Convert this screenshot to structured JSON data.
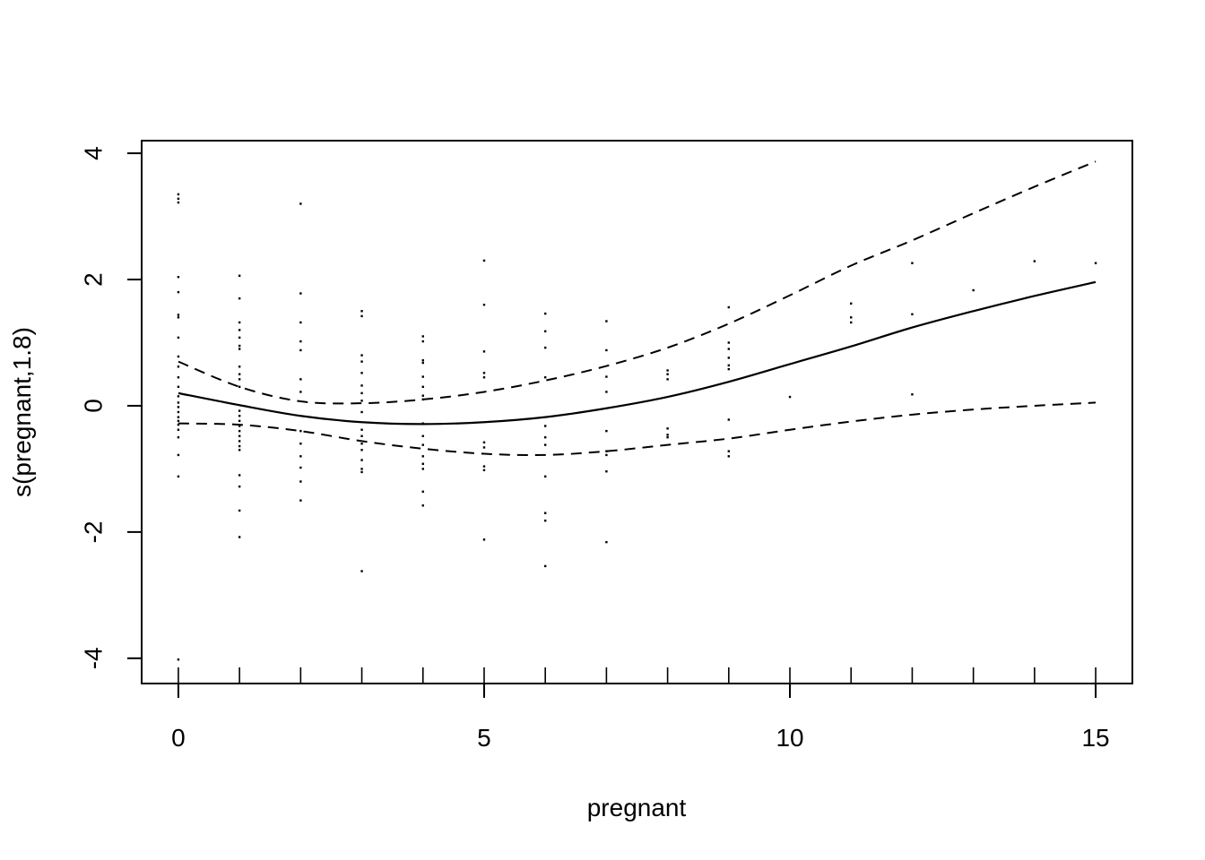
{
  "chart_data": {
    "type": "line",
    "title": "",
    "xlabel": "pregnant",
    "ylabel": "s(pregnant,1.8)",
    "xlim": [
      -0.6,
      15.6
    ],
    "ylim": [
      -4.4,
      4.2
    ],
    "x_ticks": [
      0,
      5,
      10,
      15
    ],
    "y_ticks": [
      -4,
      -2,
      0,
      2,
      4
    ],
    "grid": false,
    "legend": "none",
    "series": [
      {
        "style": "solid",
        "x": [
          0,
          1,
          2,
          3,
          4,
          5,
          6,
          7,
          8,
          9,
          10,
          11,
          12,
          13,
          14,
          15
        ],
        "y": [
          0.2,
          0.01,
          -0.16,
          -0.26,
          -0.29,
          -0.26,
          -0.18,
          -0.04,
          0.14,
          0.38,
          0.66,
          0.94,
          1.24,
          1.5,
          1.74,
          1.96
        ]
      },
      {
        "style": "dashed",
        "x": [
          0,
          1,
          2,
          3,
          4,
          5,
          6,
          7,
          8,
          9,
          10,
          11,
          12,
          13,
          14,
          15
        ],
        "y": [
          0.7,
          0.3,
          0.07,
          0.04,
          0.1,
          0.22,
          0.4,
          0.63,
          0.92,
          1.3,
          1.75,
          2.22,
          2.62,
          3.05,
          3.47,
          3.87
        ]
      },
      {
        "style": "dashed",
        "x": [
          0,
          1,
          2,
          3,
          4,
          5,
          6,
          7,
          8,
          9,
          10,
          11,
          12,
          13,
          14,
          15
        ],
        "y": [
          -0.28,
          -0.3,
          -0.4,
          -0.56,
          -0.68,
          -0.76,
          -0.78,
          -0.72,
          -0.62,
          -0.52,
          -0.38,
          -0.25,
          -0.14,
          -0.06,
          0.0,
          0.05
        ]
      }
    ],
    "rug_x": [
      0,
      1,
      2,
      3,
      4,
      5,
      6,
      7,
      8,
      9,
      10,
      11,
      12,
      13,
      14,
      15
    ],
    "partial_residuals": {
      "x": [
        0,
        0,
        0,
        0,
        0,
        0,
        0,
        0,
        0,
        0,
        0,
        0,
        0,
        0,
        0,
        0,
        0,
        0,
        0,
        0,
        0,
        0,
        0,
        0,
        1,
        1,
        1,
        1,
        1,
        1,
        1,
        1,
        1,
        1,
        1,
        1,
        1,
        1,
        1,
        1,
        1,
        1,
        1,
        1,
        1,
        1,
        1,
        1,
        2,
        2,
        2,
        2,
        2,
        2,
        2,
        2,
        2,
        2,
        2,
        2,
        2,
        3,
        3,
        3,
        3,
        3,
        3,
        3,
        3,
        3,
        3,
        3,
        3,
        3,
        3,
        3,
        3,
        3,
        4,
        4,
        4,
        4,
        4,
        4,
        4,
        4,
        4,
        4,
        4,
        4,
        4,
        4,
        4,
        4,
        5,
        5,
        5,
        5,
        5,
        5,
        5,
        5,
        5,
        5,
        6,
        6,
        6,
        6,
        6,
        6,
        6,
        6,
        6,
        6,
        6,
        7,
        7,
        7,
        7,
        7,
        7,
        7,
        7,
        7,
        8,
        8,
        8,
        8,
        8,
        8,
        9,
        9,
        9,
        9,
        9,
        9,
        9,
        9,
        9,
        10,
        11,
        11,
        11,
        12,
        12,
        12,
        13,
        14,
        15
      ],
      "y": [
        3.35,
        3.28,
        3.22,
        2.04,
        1.8,
        1.44,
        1.4,
        1.08,
        0.78,
        0.62,
        0.45,
        0.3,
        0.15,
        0.05,
        -0.02,
        -0.1,
        -0.18,
        -0.24,
        -0.3,
        -0.38,
        -0.5,
        -0.78,
        -1.12,
        -4.02,
        2.06,
        1.7,
        1.32,
        1.2,
        1.08,
        0.95,
        0.9,
        0.62,
        0.5,
        0.42,
        0.3,
        -0.08,
        -0.16,
        -0.24,
        -0.32,
        -0.4,
        -0.48,
        -0.56,
        -0.64,
        -0.7,
        -1.1,
        -1.28,
        -1.66,
        -2.08,
        3.2,
        1.78,
        1.32,
        1.02,
        0.88,
        0.42,
        0.22,
        -0.4,
        -0.6,
        -0.8,
        -0.98,
        -1.2,
        -1.5,
        1.5,
        1.42,
        0.8,
        0.7,
        0.52,
        0.32,
        0.2,
        0.08,
        -0.1,
        -0.38,
        -0.48,
        -0.6,
        -0.7,
        -0.86,
        -1.0,
        -1.05,
        -2.62,
        1.1,
        1.02,
        0.72,
        0.68,
        0.46,
        0.3,
        0.16,
        0.1,
        -0.28,
        -0.48,
        -0.62,
        -0.8,
        -0.92,
        -1.0,
        -1.36,
        -1.58,
        2.3,
        1.6,
        0.86,
        0.52,
        0.45,
        -0.58,
        -0.66,
        -0.96,
        -1.02,
        -2.12,
        1.46,
        1.18,
        0.92,
        0.45,
        -0.32,
        -0.5,
        -0.62,
        -1.12,
        -1.7,
        -1.82,
        -2.54,
        1.34,
        0.88,
        0.46,
        0.22,
        -0.4,
        -0.72,
        -0.78,
        -1.04,
        -2.16,
        0.56,
        0.5,
        0.42,
        -0.36,
        -0.46,
        -0.5,
        1.56,
        1.0,
        0.9,
        0.76,
        0.64,
        0.58,
        -0.22,
        -0.72,
        -0.8,
        0.14,
        1.62,
        1.4,
        1.32,
        2.26,
        1.45,
        0.18,
        1.83,
        2.29,
        2.26
      ]
    }
  }
}
